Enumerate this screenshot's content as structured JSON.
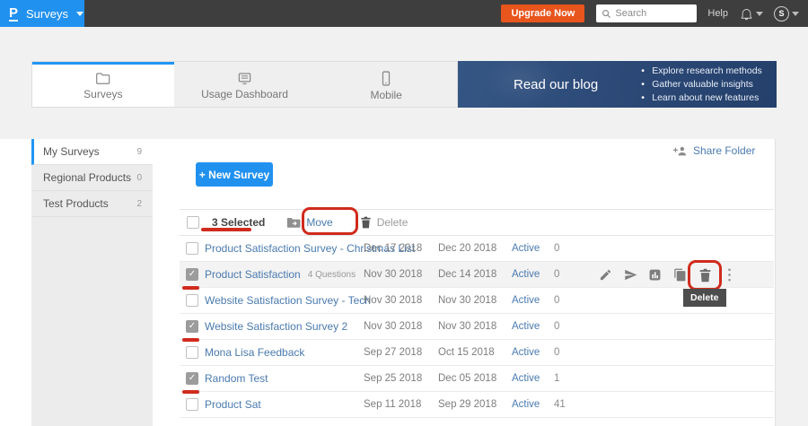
{
  "topbar": {
    "logo": "P",
    "product": "Surveys",
    "upgrade_label": "Upgrade Now",
    "search_placeholder": "Search",
    "help_label": "Help",
    "avatar_initial": "S"
  },
  "tabs": [
    {
      "label": "Surveys",
      "active": true
    },
    {
      "label": "Usage Dashboard",
      "active": false
    },
    {
      "label": "Mobile",
      "active": false
    }
  ],
  "banner": {
    "title": "Read our blog",
    "bullets": [
      "Explore research methods",
      "Gather valuable insights",
      "Learn about new features"
    ]
  },
  "sidebar": {
    "items": [
      {
        "label": "My Surveys",
        "count": "9",
        "active": true
      },
      {
        "label": "Regional Products",
        "count": "0",
        "active": false
      },
      {
        "label": "Test Products",
        "count": "2",
        "active": false
      }
    ]
  },
  "actions": {
    "new_survey_label": "+  New Survey",
    "share_folder_label": "Share Folder"
  },
  "toolbar": {
    "selected_label": "3 Selected",
    "move_label": "Move",
    "delete_label": "Delete"
  },
  "table": {
    "rows": [
      {
        "name": "Product Satisfaction Survey - Christmas List",
        "sub": "",
        "date1": "Dec 17 2018",
        "date2": "Dec 20 2018",
        "status": "Active",
        "count": "0",
        "checked": false,
        "hovered": false
      },
      {
        "name": "Product Satisfaction",
        "sub": "4 Questions",
        "date1": "Nov 30 2018",
        "date2": "Dec 14 2018",
        "status": "Active",
        "count": "0",
        "checked": true,
        "hovered": true
      },
      {
        "name": "Website Satisfaction Survey - Tech",
        "sub": "",
        "date1": "Nov 30 2018",
        "date2": "Nov 30 2018",
        "status": "Active",
        "count": "0",
        "checked": false,
        "hovered": false
      },
      {
        "name": "Website Satisfaction Survey 2",
        "sub": "",
        "date1": "Nov 30 2018",
        "date2": "Nov 30 2018",
        "status": "Active",
        "count": "0",
        "checked": true,
        "hovered": false
      },
      {
        "name": "Mona Lisa Feedback",
        "sub": "",
        "date1": "Sep 27 2018",
        "date2": "Oct 15 2018",
        "status": "Active",
        "count": "0",
        "checked": false,
        "hovered": false
      },
      {
        "name": "Random Test",
        "sub": "",
        "date1": "Sep 25 2018",
        "date2": "Dec 05 2018",
        "status": "Active",
        "count": "1",
        "checked": true,
        "hovered": false
      },
      {
        "name": "Product Sat",
        "sub": "",
        "date1": "Sep 11 2018",
        "date2": "Sep 29 2018",
        "status": "Active",
        "count": "41",
        "checked": false,
        "hovered": false
      }
    ]
  },
  "row_actions": {
    "tooltip": "Delete",
    "icons": [
      "edit",
      "send",
      "report",
      "copy",
      "delete",
      "more"
    ]
  },
  "colors": {
    "accent_blue": "#2196f3",
    "link_blue": "#4a7aaf",
    "upgrade_orange": "#e8551d",
    "banner_navy": "#2d4a78",
    "topbar_dark": "#3e3e3e",
    "annotation_red": "#d02b1d"
  }
}
